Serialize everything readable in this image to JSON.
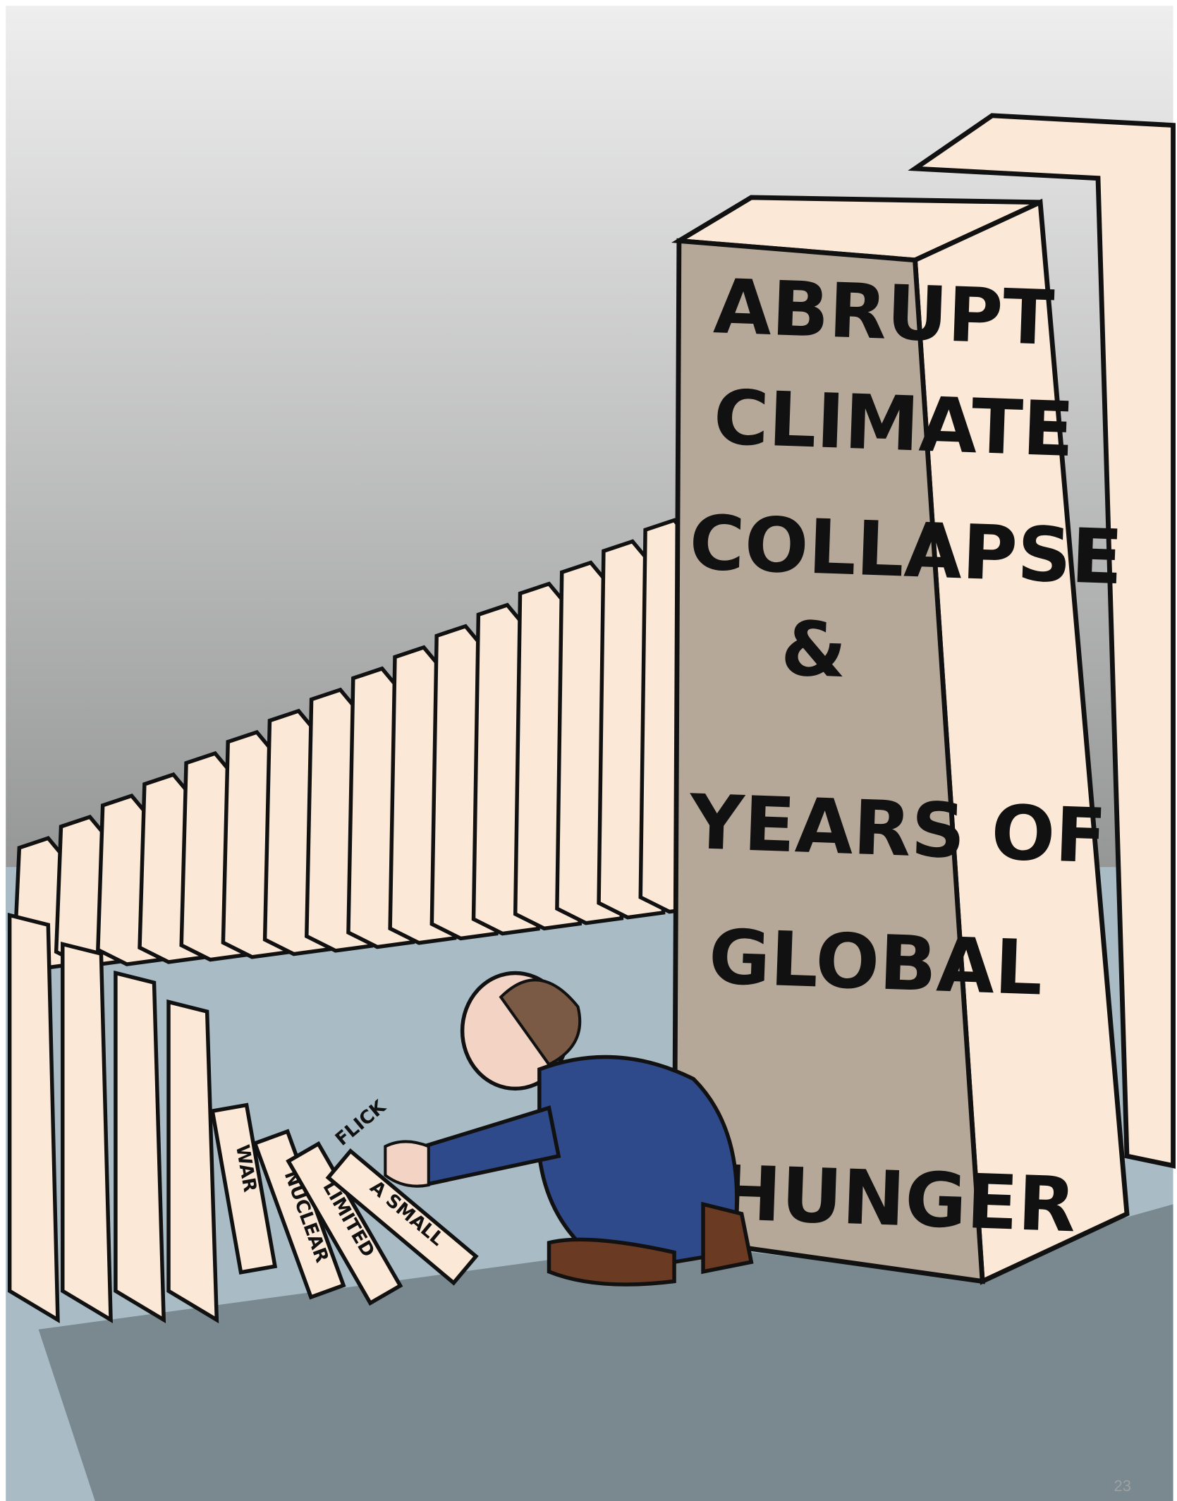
{
  "domino": {
    "lines": [
      "ABRUPT",
      "CLIMATE",
      "COLLAPSE",
      "&",
      "YEARS OF",
      "GLOBAL",
      "HUNGER"
    ]
  },
  "small_dominoes": [
    "WAR",
    "NUCLEAR",
    "LIMITED",
    "A SMALL"
  ],
  "sound_effect": "FLICK",
  "page_number": "23"
}
